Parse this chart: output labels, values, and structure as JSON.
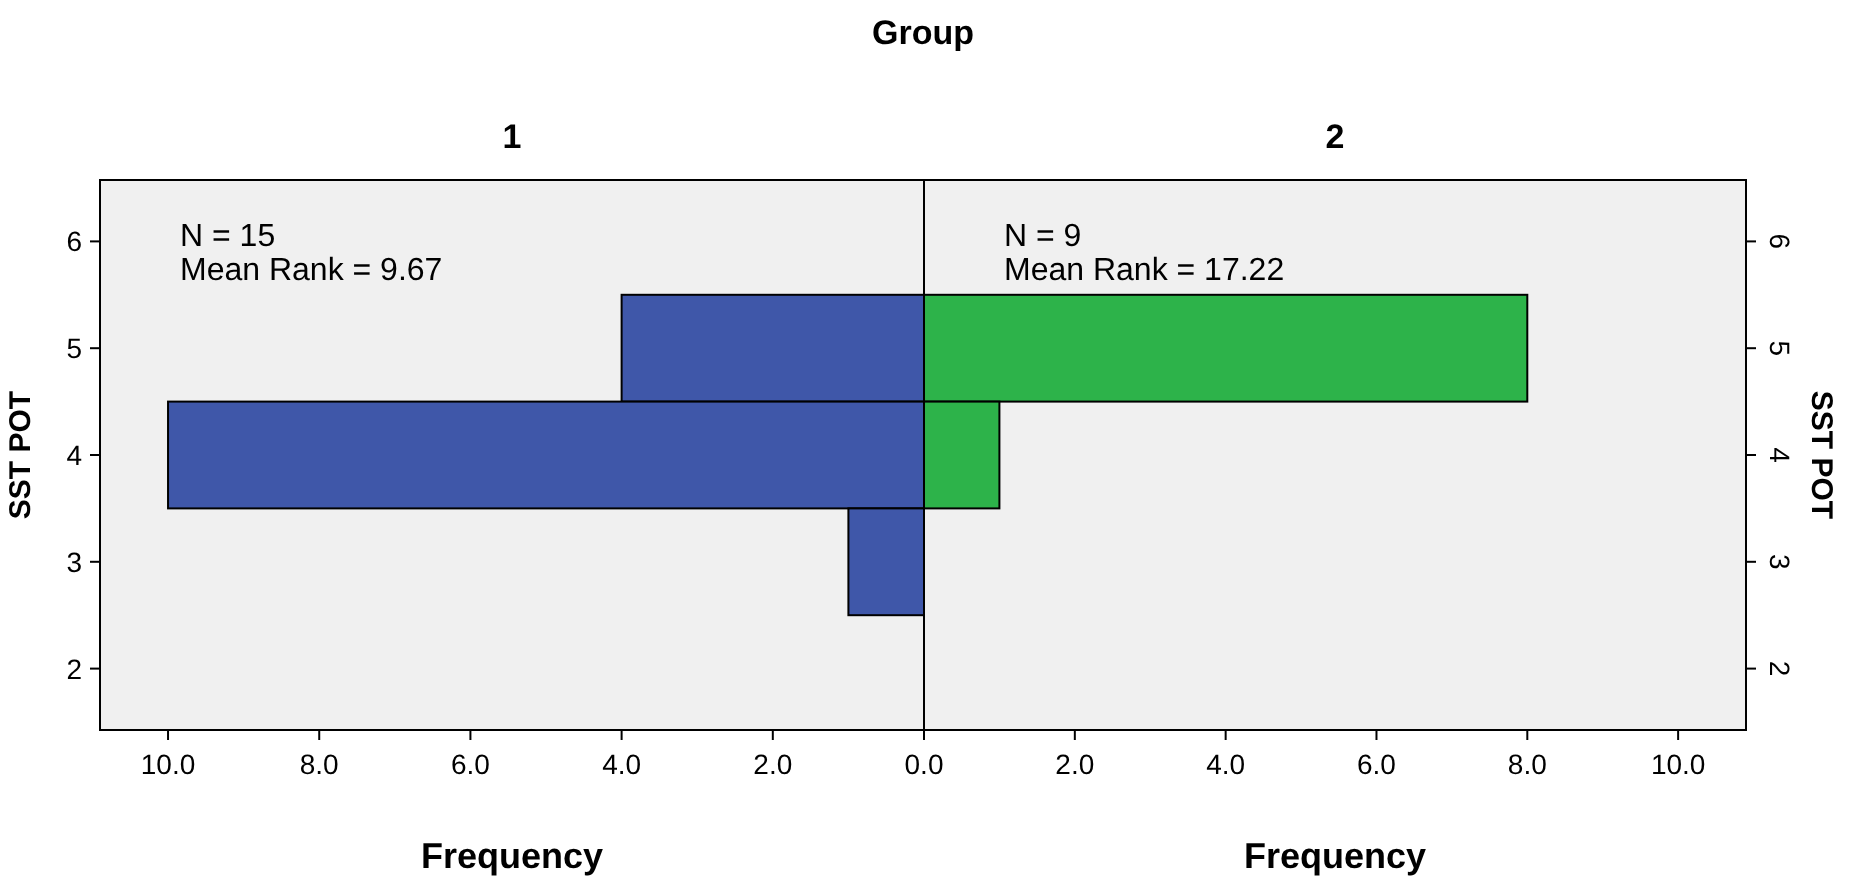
{
  "chart_data": [
    {
      "type": "bar",
      "orientation": "horizontal",
      "subtitle": "Group",
      "title": "1",
      "xlabel": "Frequency",
      "ylabel": "SST POT",
      "categories": [
        "6",
        "5",
        "4",
        "3",
        "2"
      ],
      "values": [
        null,
        4,
        10,
        1,
        null
      ],
      "color": "#3f57a9",
      "xlim": [
        10.9,
        0
      ],
      "xticks": [
        {
          "value": 10,
          "label": "10.0"
        },
        {
          "value": 8,
          "label": "8.0"
        },
        {
          "value": 6,
          "label": "6.0"
        },
        {
          "value": 4,
          "label": "4.0"
        },
        {
          "value": 2,
          "label": "2.0"
        },
        {
          "value": 0,
          "label": "0.0"
        }
      ],
      "annotations": [
        "N = 15",
        "Mean Rank = 9.67"
      ],
      "grid": false
    },
    {
      "type": "bar",
      "orientation": "horizontal",
      "title": "2",
      "xlabel": "Frequency",
      "y2label": "SST POT",
      "categories": [
        "6",
        "5",
        "4",
        "3",
        "2"
      ],
      "values": [
        null,
        8,
        1,
        null,
        null
      ],
      "color": "#2db34a",
      "xlim": [
        0,
        10.9
      ],
      "xticks": [
        {
          "value": 0,
          "label": null
        },
        {
          "value": 2,
          "label": "2.0"
        },
        {
          "value": 4,
          "label": "4.0"
        },
        {
          "value": 6,
          "label": "6.0"
        },
        {
          "value": 8,
          "label": "8.0"
        },
        {
          "value": 10,
          "label": "10.0"
        }
      ],
      "annotations": [
        "N = 9",
        "Mean Rank = 17.22"
      ],
      "grid": false
    }
  ]
}
